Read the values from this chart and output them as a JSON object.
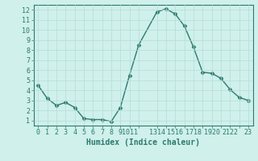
{
  "x": [
    0,
    1,
    2,
    3,
    4,
    5,
    6,
    7,
    8,
    9,
    10,
    11,
    13,
    14,
    15,
    16,
    17,
    18,
    19,
    20,
    21,
    22,
    23
  ],
  "y": [
    4.5,
    3.2,
    2.5,
    2.8,
    2.3,
    1.2,
    1.1,
    1.1,
    0.9,
    2.3,
    5.5,
    8.5,
    11.8,
    12.1,
    11.6,
    10.4,
    8.3,
    5.8,
    5.7,
    5.2,
    4.1,
    3.3,
    3.0
  ],
  "line_color": "#2d7a6e",
  "marker": "D",
  "marker_size": 2.5,
  "bg_color": "#cff0eb",
  "grid_color": "#b5ddd8",
  "xlabel": "Humidex (Indice chaleur)",
  "xlim": [
    -0.5,
    23.5
  ],
  "ylim": [
    0.5,
    12.5
  ],
  "xtick_positions": [
    0,
    1,
    2,
    3,
    4,
    5,
    6,
    7,
    8,
    9,
    10,
    11,
    13,
    14,
    15,
    16,
    17,
    18,
    19,
    20,
    21,
    22,
    23
  ],
  "xtick_labels": [
    "0",
    "1",
    "2",
    "3",
    "4",
    "5",
    "6",
    "7",
    "8",
    "9",
    "1011",
    "",
    "1314",
    "",
    "1516",
    "",
    "1718",
    "",
    "1920",
    "",
    "2122",
    "",
    "23"
  ],
  "ytick_positions": [
    1,
    2,
    3,
    4,
    5,
    6,
    7,
    8,
    9,
    10,
    11,
    12
  ],
  "ytick_labels": [
    "1",
    "2",
    "3",
    "4",
    "5",
    "6",
    "7",
    "8",
    "9",
    "10",
    "11",
    "12"
  ],
  "tick_fontsize": 6,
  "xlabel_fontsize": 7
}
